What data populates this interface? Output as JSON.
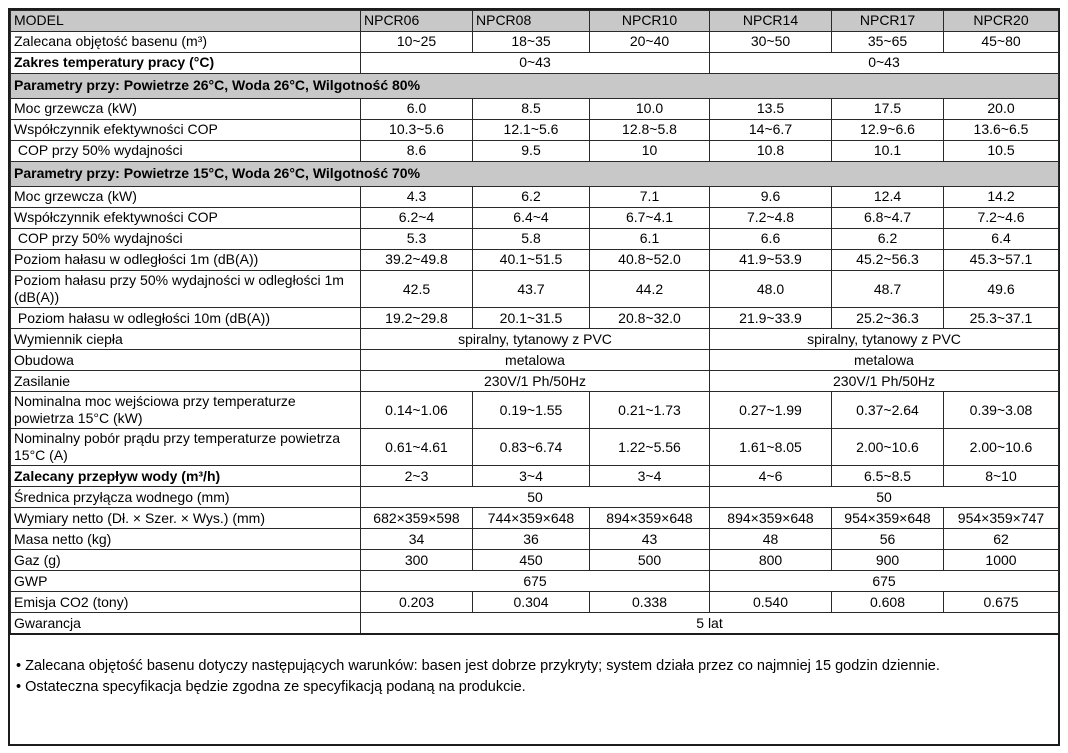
{
  "table": {
    "rows": [
      {
        "type": "header",
        "label": "MODEL",
        "cells": [
          "NPCR06",
          "NPCR08",
          "NPCR10",
          "NPCR14",
          "NPCR17",
          "NPCR20"
        ]
      },
      {
        "type": "data",
        "label": "Zalecana objętość basenu (m³)",
        "cells": [
          "10~25",
          "18~35",
          "20~40",
          "30~50",
          "35~65",
          "45~80"
        ]
      },
      {
        "type": "span2",
        "label": "Zakres temperatury pracy (°C)",
        "bold": true,
        "cells": [
          "0~43",
          "0~43"
        ]
      },
      {
        "type": "section",
        "label": "Parametry przy: Powietrze 26°C, Woda 26°C, Wilgotność 80%"
      },
      {
        "type": "data",
        "label": "Moc grzewcza (kW)",
        "cells": [
          "6.0",
          "8.5",
          "10.0",
          "13.5",
          "17.5",
          "20.0"
        ]
      },
      {
        "type": "data",
        "label": "Współczynnik efektywności COP",
        "cells": [
          "10.3~5.6",
          "12.1~5.6",
          "12.8~5.8",
          "14~6.7",
          "12.9~6.6",
          "13.6~6.5"
        ]
      },
      {
        "type": "data",
        "label": " COP przy 50% wydajności",
        "cells": [
          "8.6",
          "9.5",
          "10",
          "10.8",
          "10.1",
          "10.5"
        ]
      },
      {
        "type": "section",
        "label": "Parametry przy: Powietrze 15°C, Woda 26°C, Wilgotność 70%"
      },
      {
        "type": "data",
        "label": "Moc grzewcza (kW)",
        "cells": [
          "4.3",
          "6.2",
          "7.1",
          "9.6",
          "12.4",
          "14.2"
        ]
      },
      {
        "type": "data",
        "label": "Współczynnik efektywności COP",
        "cells": [
          "6.2~4",
          "6.4~4",
          "6.7~4.1",
          "7.2~4.8",
          "6.8~4.7",
          "7.2~4.6"
        ]
      },
      {
        "type": "data",
        "label": " COP przy 50% wydajności",
        "cells": [
          "5.3",
          "5.8",
          "6.1",
          "6.6",
          "6.2",
          "6.4"
        ]
      },
      {
        "type": "data",
        "label": "Poziom hałasu w odległości 1m (dB(A))",
        "cells": [
          "39.2~49.8",
          "40.1~51.5",
          "40.8~52.0",
          "41.9~53.9",
          "45.2~56.3",
          "45.3~57.1"
        ]
      },
      {
        "type": "data",
        "label": "Poziom hałasu przy 50% wydajności w odległości 1m (dB(A))",
        "cells": [
          "42.5",
          "43.7",
          "44.2",
          "48.0",
          "48.7",
          "49.6"
        ]
      },
      {
        "type": "data",
        "label": " Poziom hałasu w odległości 10m (dB(A))",
        "cells": [
          "19.2~29.8",
          "20.1~31.5",
          "20.8~32.0",
          "21.9~33.9",
          "25.2~36.3",
          "25.3~37.1"
        ]
      },
      {
        "type": "span2",
        "label": "Wymiennik ciepła",
        "cells": [
          "spiralny, tytanowy z PVC",
          "spiralny, tytanowy z PVC"
        ]
      },
      {
        "type": "span2",
        "label": "Obudowa",
        "cells": [
          "metalowa",
          "metalowa"
        ]
      },
      {
        "type": "span2",
        "label": "Zasilanie",
        "cells": [
          "230V/1 Ph/50Hz",
          "230V/1 Ph/50Hz"
        ]
      },
      {
        "type": "data",
        "label": "Nominalna moc wejściowa przy temperaturze powietrza 15°C (kW)",
        "cells": [
          "0.14~1.06",
          "0.19~1.55",
          "0.21~1.73",
          "0.27~1.99",
          "0.37~2.64",
          "0.39~3.08"
        ]
      },
      {
        "type": "data",
        "label": "Nominalny pobór prądu przy temperaturze powietrza 15°C (A)",
        "cells": [
          "0.61~4.61",
          "0.83~6.74",
          "1.22~5.56",
          "1.61~8.05",
          "2.00~10.6",
          "2.00~10.6"
        ]
      },
      {
        "type": "data",
        "label": "Zalecany przepływ wody (m³/h)",
        "bold": true,
        "cells": [
          "2~3",
          "3~4",
          "3~4",
          "4~6",
          "6.5~8.5",
          "8~10"
        ]
      },
      {
        "type": "span2",
        "label": "Średnica przyłącza wodnego (mm)",
        "cells": [
          "50",
          "50"
        ]
      },
      {
        "type": "data",
        "label": "Wymiary netto (Dł. × Szer. × Wys.) (mm)",
        "cells": [
          "682×359×598",
          "744×359×648",
          "894×359×648",
          "894×359×648",
          "954×359×648",
          "954×359×747"
        ]
      },
      {
        "type": "data",
        "label": "Masa netto (kg)",
        "cells": [
          "34",
          "36",
          "43",
          "48",
          "56",
          "62"
        ]
      },
      {
        "type": "data",
        "label": "Gaz (g)",
        "cells": [
          "300",
          "450",
          "500",
          "800",
          "900",
          "1000"
        ]
      },
      {
        "type": "span2",
        "label": "GWP",
        "cells": [
          "675",
          "675"
        ]
      },
      {
        "type": "data",
        "label": "Emisja CO2 (tony)",
        "cells": [
          "0.203",
          "0.304",
          "0.338",
          "0.540",
          "0.608",
          "0.675"
        ]
      },
      {
        "type": "span6",
        "label": "Gwarancja",
        "cells": [
          "5 lat"
        ]
      }
    ]
  },
  "notes": [
    "• Zalecana objętość basenu dotyczy następujących warunków: basen jest dobrze przykryty; system działa przez co najmniej 15 godzin dziennie.",
    "• Ostateczna specyfikacja będzie zgodna ze specyfikacją podaną na produkcie."
  ],
  "colors": {
    "section_band": "#c8c8c8",
    "border": "#1c1c1c",
    "background": "#ffffff"
  }
}
